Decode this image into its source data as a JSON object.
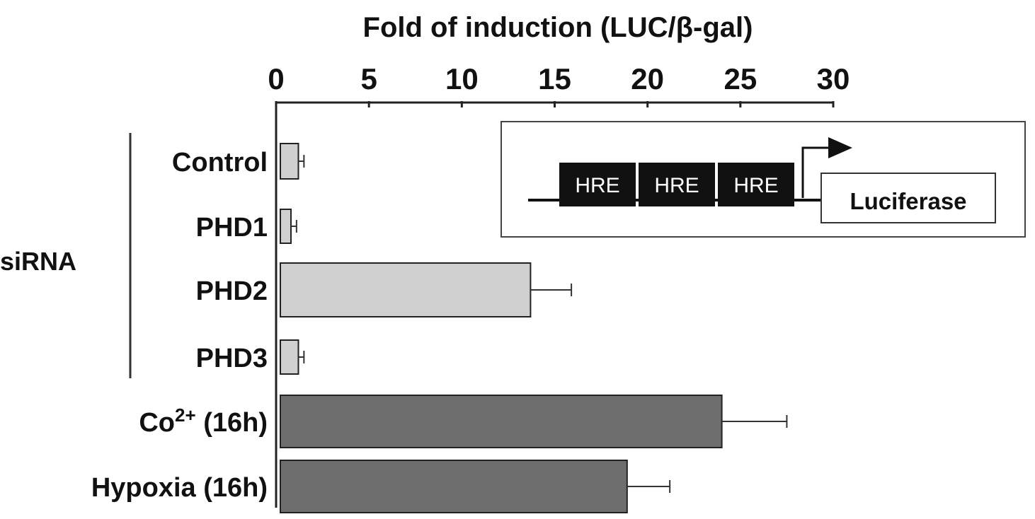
{
  "chart_data": {
    "type": "bar",
    "orientation": "horizontal",
    "title": "Fold of induction (LUC/β-gal)",
    "x_axis": {
      "position": "top",
      "range": [
        0,
        30
      ],
      "ticks": [
        "0",
        "5",
        "10",
        "15",
        "20",
        "25",
        "30"
      ],
      "tick_values": [
        0,
        5,
        10,
        15,
        20,
        25,
        30
      ]
    },
    "group_label": "siRNA",
    "categories": [
      {
        "name": "Control",
        "value": 1.2,
        "error": 0.3,
        "group": "siRNA",
        "shade": "light"
      },
      {
        "name": "PHD1",
        "value": 0.8,
        "error": 0.3,
        "group": "siRNA",
        "shade": "light"
      },
      {
        "name": "PHD2",
        "value": 13.7,
        "error": 2.2,
        "group": "siRNA",
        "shade": "light"
      },
      {
        "name": "PHD3",
        "value": 1.2,
        "error": 0.3,
        "group": "siRNA",
        "shade": "light"
      },
      {
        "name": "Co2+ (16h)",
        "label_base": "Co",
        "label_sup": "2+",
        "label_rest": " (16h)",
        "value": 24.0,
        "error": 3.5,
        "group": "",
        "shade": "dark"
      },
      {
        "name": "Hypoxia (16h)",
        "value": 18.9,
        "error": 2.3,
        "group": "",
        "shade": "dark"
      }
    ],
    "colors": {
      "light": "#d0d0d0",
      "dark": "#6e6e6e",
      "outline": "#222222"
    },
    "inset": {
      "elements": [
        "HRE",
        "HRE",
        "HRE"
      ],
      "reporter": "Luciferase"
    }
  }
}
